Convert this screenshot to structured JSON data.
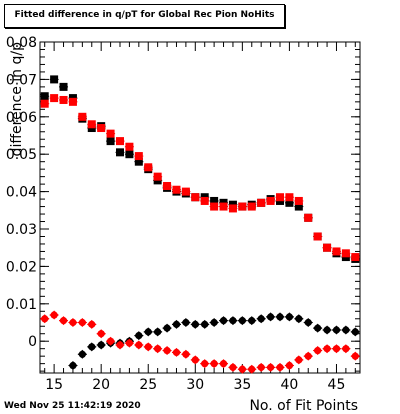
{
  "chart_data": {
    "type": "scatter",
    "title": "Fitted difference in q/pT for Global Rec Pion NoHits",
    "xlabel": "No. of Fit Points",
    "ylabel": "difference in q/p",
    "xlim": [
      13.5,
      47.5
    ],
    "ylim": [
      -0.0085,
      0.08
    ],
    "x_ticks": [
      15,
      20,
      25,
      30,
      35,
      40,
      45
    ],
    "y_ticks": [
      0,
      0.01,
      0.02,
      0.03,
      0.04,
      0.05,
      0.06,
      0.07,
      0.08
    ],
    "y_tick_labels": [
      "0",
      "0.01",
      "0.02",
      "0.03",
      "0.04",
      "0.05",
      "0.06",
      "0.07",
      "0.08"
    ],
    "grid": false,
    "legend": "none",
    "series": [
      {
        "color": "#000000",
        "marker": "square",
        "x": [
          14,
          15,
          16,
          17,
          18,
          19,
          20,
          21,
          22,
          23,
          24,
          25,
          26,
          27,
          28,
          29,
          30,
          31,
          32,
          33,
          34,
          35,
          36,
          37,
          38,
          39,
          40,
          41,
          42,
          43,
          44,
          45,
          46,
          47
        ],
        "y": [
          0.0655,
          0.07,
          0.068,
          0.065,
          0.0595,
          0.057,
          0.0575,
          0.0535,
          0.0505,
          0.05,
          0.048,
          0.046,
          0.043,
          0.041,
          0.04,
          0.0395,
          0.0385,
          0.0385,
          0.0375,
          0.037,
          0.0365,
          0.036,
          0.0365,
          0.037,
          0.038,
          0.0375,
          0.037,
          0.036,
          0.033,
          0.028,
          0.025,
          0.0235,
          0.0225,
          0.022
        ]
      },
      {
        "color": "#ff0000",
        "marker": "square",
        "x": [
          14,
          15,
          16,
          17,
          18,
          19,
          20,
          21,
          22,
          23,
          24,
          25,
          26,
          27,
          28,
          29,
          30,
          31,
          32,
          33,
          34,
          35,
          36,
          37,
          38,
          39,
          40,
          41,
          42,
          43,
          44,
          45,
          46,
          47
        ],
        "y": [
          0.0635,
          0.065,
          0.0645,
          0.064,
          0.06,
          0.058,
          0.057,
          0.0555,
          0.0535,
          0.052,
          0.0495,
          0.0465,
          0.044,
          0.0415,
          0.0405,
          0.04,
          0.0385,
          0.0375,
          0.036,
          0.036,
          0.0355,
          0.036,
          0.036,
          0.037,
          0.0375,
          0.0385,
          0.0385,
          0.0375,
          0.033,
          0.028,
          0.025,
          0.024,
          0.0235,
          0.0225
        ]
      },
      {
        "color": "#000000",
        "marker": "circle",
        "x": [
          17,
          18,
          19,
          20,
          21,
          22,
          23,
          24,
          25,
          26,
          27,
          28,
          29,
          30,
          31,
          32,
          33,
          34,
          35,
          36,
          37,
          38,
          39,
          40,
          41,
          42,
          43,
          44,
          45,
          46,
          47
        ],
        "y": [
          -0.0065,
          -0.0035,
          -0.0015,
          -0.001,
          -0.0005,
          -0.0005,
          0.0,
          0.0015,
          0.0025,
          0.0025,
          0.0035,
          0.0045,
          0.005,
          0.0045,
          0.0045,
          0.005,
          0.0055,
          0.0055,
          0.0055,
          0.0055,
          0.006,
          0.0065,
          0.0065,
          0.0065,
          0.006,
          0.005,
          0.0035,
          0.003,
          0.003,
          0.003,
          0.0025
        ]
      },
      {
        "color": "#ff0000",
        "marker": "circle",
        "x": [
          14,
          15,
          16,
          17,
          18,
          19,
          20,
          21,
          22,
          23,
          24,
          25,
          26,
          27,
          28,
          29,
          30,
          31,
          32,
          33,
          34,
          35,
          36,
          37,
          38,
          39,
          40,
          41,
          42,
          43,
          44,
          45,
          46,
          47
        ],
        "y": [
          0.006,
          0.007,
          0.0055,
          0.005,
          0.005,
          0.0045,
          0.002,
          0.0,
          -0.001,
          -0.0005,
          -0.001,
          -0.0015,
          -0.002,
          -0.0025,
          -0.003,
          -0.0035,
          -0.005,
          -0.006,
          -0.006,
          -0.006,
          -0.007,
          -0.0075,
          -0.0075,
          -0.007,
          -0.007,
          -0.007,
          -0.0065,
          -0.005,
          -0.004,
          -0.0025,
          -0.002,
          -0.002,
          -0.002,
          -0.004
        ]
      }
    ]
  },
  "timestamp": "Wed Nov 25 11:42:19 2020"
}
